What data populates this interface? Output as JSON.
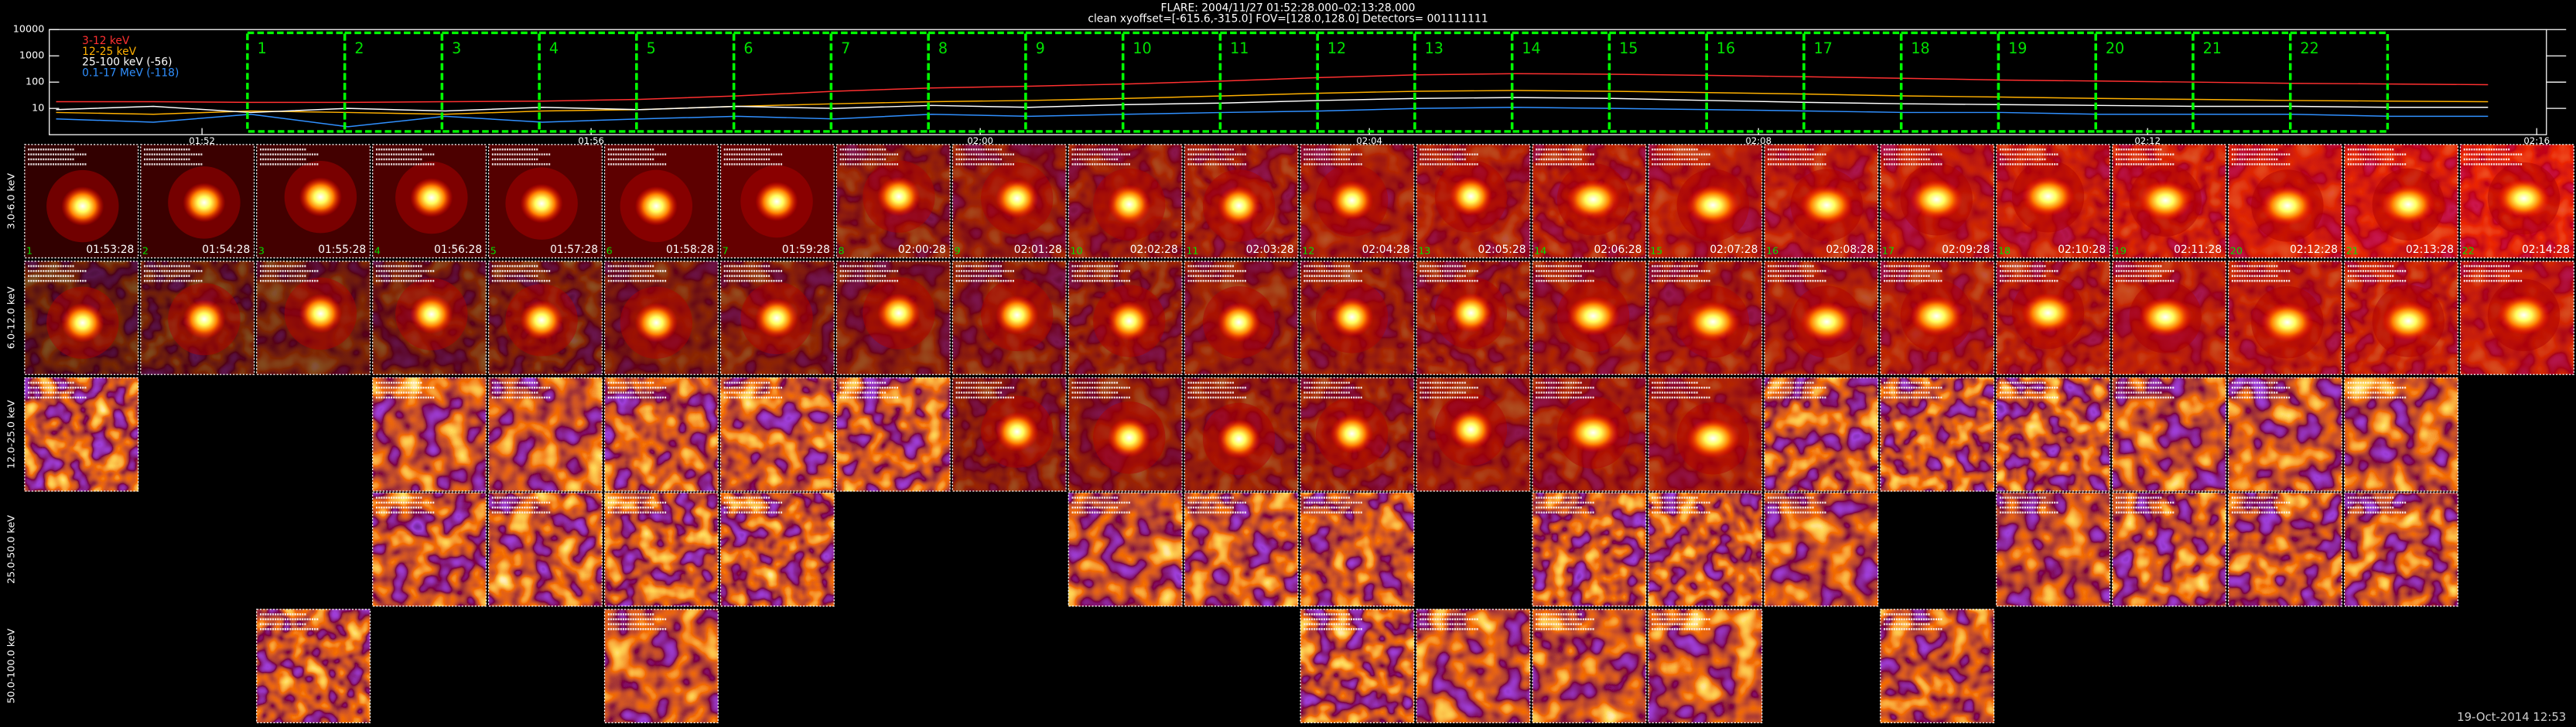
{
  "header": {
    "title": "FLARE: 2004/11/27 01:52:28.000–02:13:28.000",
    "subtitle": "clean    xyoffset=[-615.6,-315.0]    FOV=[128.0,128.0]    Detectors= 001111111"
  },
  "lightcurve": {
    "ylog": true,
    "ylim": [
      1,
      10000
    ],
    "yticks": [
      10,
      100,
      1000,
      10000
    ],
    "xlim": [
      110.43,
      136.1
    ],
    "xticks": [
      {
        "value": 112,
        "label": "01:52"
      },
      {
        "value": 116,
        "label": "01:56"
      },
      {
        "value": 120,
        "label": "02:00"
      },
      {
        "value": 124,
        "label": "02:04"
      },
      {
        "value": 128,
        "label": "02:08"
      },
      {
        "value": 132,
        "label": "02:12"
      },
      {
        "value": 136,
        "label": "02:16"
      }
    ],
    "x": [
      110.5,
      111.5,
      112.5,
      113.5,
      114.5,
      115.5,
      116.5,
      117.5,
      118.5,
      119.5,
      120.5,
      121.5,
      122.5,
      123.5,
      124.5,
      125.5,
      126.5,
      127.5,
      128.5,
      129.5,
      130.5,
      131.5,
      132.5,
      133.5,
      134.5,
      135.5
    ],
    "series": [
      {
        "name": "3-12 keV",
        "color": "#ff3030",
        "values": [
          18,
          18,
          17,
          17,
          18,
          19,
          22,
          30,
          45,
          60,
          70,
          85,
          110,
          150,
          190,
          210,
          200,
          180,
          160,
          140,
          120,
          110,
          100,
          90,
          85,
          80
        ]
      },
      {
        "name": "12-25 keV",
        "color": "#ffb000",
        "values": [
          7,
          6,
          8,
          7,
          6,
          8,
          9,
          12,
          15,
          18,
          20,
          24,
          30,
          38,
          45,
          48,
          45,
          40,
          35,
          30,
          27,
          24,
          22,
          20,
          19,
          18
        ]
      },
      {
        "name": "25-100 keV (-56)",
        "color": "#ffffff",
        "values": [
          9,
          12,
          7,
          10,
          8,
          11,
          9,
          12,
          10,
          13,
          11,
          14,
          16,
          20,
          24,
          26,
          24,
          20,
          17,
          15,
          14,
          13,
          12,
          12,
          11,
          11
        ]
      },
      {
        "name": "0.1-17 MeV (-118)",
        "color": "#3090ff",
        "values": [
          4,
          3,
          6,
          2,
          5,
          3,
          4,
          5,
          4,
          6,
          5,
          6,
          7,
          8,
          10,
          11,
          10,
          9,
          8,
          7,
          7,
          6,
          6,
          6,
          5,
          5
        ]
      }
    ],
    "interval_start": 112.467,
    "intervals": [
      "1",
      "2",
      "3",
      "4",
      "5",
      "6",
      "7",
      "8",
      "9",
      "10",
      "11",
      "12",
      "13",
      "14",
      "15",
      "16",
      "17",
      "18",
      "19",
      "20",
      "21",
      "22"
    ]
  },
  "times": [
    "01:53:28",
    "01:54:28",
    "01:55:28",
    "01:56:28",
    "01:57:28",
    "01:58:28",
    "01:59:28",
    "02:00:28",
    "02:01:28",
    "02:02:28",
    "02:03:28",
    "02:04:28",
    "02:05:28",
    "02:06:28",
    "02:07:28",
    "02:08:28",
    "02:09:28",
    "02:10:28",
    "02:11:28",
    "02:12:28",
    "02:13:28",
    "02:14:28"
  ],
  "rows": [
    {
      "label": "3.0-6.0 keV",
      "kind": "source",
      "columns": [
        1,
        2,
        3,
        4,
        5,
        6,
        7,
        8,
        9,
        10,
        11,
        12,
        13,
        14,
        15,
        16,
        17,
        18,
        19,
        20,
        21,
        22
      ]
    },
    {
      "label": "6.0-12.0 keV",
      "kind": "source",
      "columns": [
        1,
        2,
        3,
        4,
        5,
        6,
        7,
        8,
        9,
        10,
        11,
        12,
        13,
        14,
        15,
        16,
        17,
        18,
        19,
        20,
        21,
        22
      ]
    },
    {
      "label": "12.0-25.0 keV",
      "kind": "mixed",
      "columns": [
        1,
        4,
        5,
        6,
        7,
        8,
        9,
        10,
        11,
        12,
        13,
        14,
        15,
        16,
        17,
        18,
        19,
        20,
        21
      ]
    },
    {
      "label": "25.0-50.0 keV",
      "kind": "noise",
      "columns": [
        4,
        5,
        6,
        7,
        10,
        11,
        12,
        14,
        15,
        16,
        18,
        19,
        20,
        21
      ]
    },
    {
      "label": "50.0-100.0 keV",
      "kind": "noise",
      "columns": [
        3,
        6,
        12,
        13,
        14,
        15,
        17
      ]
    }
  ],
  "footer": "19-Oct-2014 12:53"
}
